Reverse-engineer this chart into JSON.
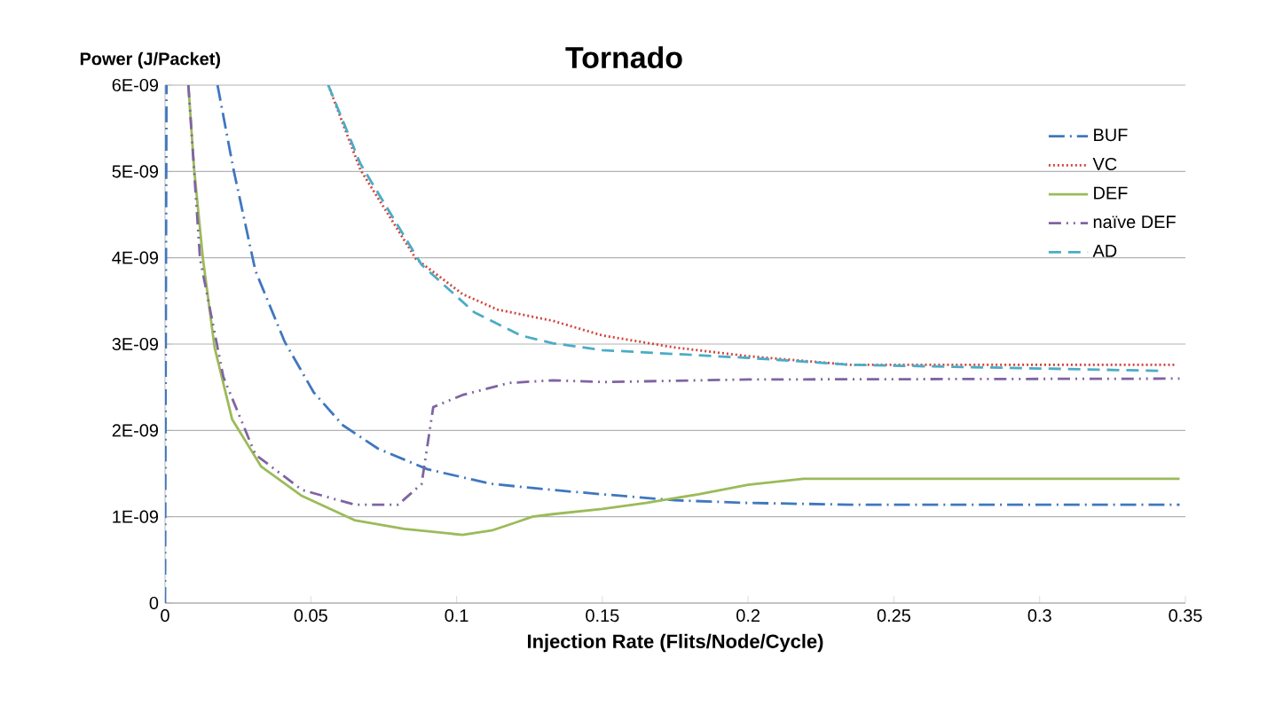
{
  "chart_data": {
    "type": "line",
    "title": "Tornado",
    "xlabel": "Injection Rate (Flits/Node/Cycle)",
    "ylabel": "Power (J/Packet)",
    "xlim": [
      0,
      0.35
    ],
    "xticks": [
      0,
      0.05,
      0.1,
      0.15,
      0.2,
      0.25,
      0.3,
      0.35
    ],
    "ylim": [
      0,
      6e-09
    ],
    "yticks": [
      {
        "value": 0,
        "label": "0"
      },
      {
        "value": 1e-09,
        "label": "1E-09"
      },
      {
        "value": 2e-09,
        "label": "2E-09"
      },
      {
        "value": 3e-09,
        "label": "3E-09"
      },
      {
        "value": 4e-09,
        "label": "4E-09"
      },
      {
        "value": 5e-09,
        "label": "5E-09"
      },
      {
        "value": 6e-09,
        "label": "6E-09"
      }
    ],
    "grid": "y",
    "legend": "top right",
    "series": [
      {
        "name": "BUF",
        "color": "#3f77c0",
        "line_style": "dashdot",
        "x": [
          0,
          0.0005,
          0.01,
          0.018,
          0.0235,
          0.031,
          0.041,
          0.051,
          0.061,
          0.073,
          0.09,
          0.112,
          0.133,
          0.15,
          0.175,
          0.2,
          0.235,
          0.348
        ],
        "values": [
          0,
          6e-09,
          null,
          6e-09,
          5.02e-09,
          3.85e-09,
          3.03e-09,
          2.44e-09,
          2.06e-09,
          1.79e-09,
          1.55e-09,
          1.38e-09,
          1.31e-09,
          1.26e-09,
          1.19e-09,
          1.16e-09,
          1.14e-09,
          1.14e-09
        ]
      },
      {
        "name": "VC",
        "color": "#d0453f",
        "line_style": "dotted",
        "x": [
          0.056,
          0.067,
          0.086,
          0.102,
          0.114,
          0.133,
          0.15,
          0.175,
          0.2,
          0.235,
          0.347
        ],
        "values": [
          6e-09,
          5.02e-09,
          3.99e-09,
          3.58e-09,
          3.4e-09,
          3.27e-09,
          3.1e-09,
          2.96e-09,
          2.86e-09,
          2.76e-09,
          2.76e-09
        ]
      },
      {
        "name": "DEF",
        "color": "#9bbb59",
        "line_style": "solid",
        "x": [
          0.008,
          0.01,
          0.013,
          0.017,
          0.023,
          0.033,
          0.047,
          0.065,
          0.082,
          0.102,
          0.112,
          0.12,
          0.126,
          0.133,
          0.15,
          0.165,
          0.183,
          0.2,
          0.219,
          0.27,
          0.348
        ],
        "values": [
          6e-09,
          5.02e-09,
          3.99e-09,
          2.96e-09,
          2.13e-09,
          1.58e-09,
          1.24e-09,
          9.6e-10,
          8.6e-10,
          7.9e-10,
          8.4e-10,
          9.3e-10,
          1e-09,
          1.03e-09,
          1.09e-09,
          1.16e-09,
          1.26e-09,
          1.37e-09,
          1.44e-09,
          1.44e-09,
          1.44e-09
        ]
      },
      {
        "name": "naïve DEF",
        "color": "#8064a2",
        "line_style": "dashdotdot",
        "x": [
          0.008,
          0.012,
          0.02,
          0.031,
          0.047,
          0.065,
          0.08,
          0.088,
          0.092,
          0.102,
          0.118,
          0.133,
          0.15,
          0.2,
          0.348
        ],
        "values": [
          6e-09,
          3.99e-09,
          2.62e-09,
          1.72e-09,
          1.31e-09,
          1.14e-09,
          1.14e-09,
          1.38e-09,
          2.27e-09,
          2.41e-09,
          2.55e-09,
          2.58e-09,
          2.56e-09,
          2.59e-09,
          2.6e-09
        ]
      },
      {
        "name": "AD",
        "color": "#4bacc6",
        "line_style": "dashed",
        "x": [
          0.056,
          0.067,
          0.088,
          0.106,
          0.122,
          0.133,
          0.15,
          0.2,
          0.235,
          0.296,
          0.341
        ],
        "values": [
          6e-09,
          5.09e-09,
          3.92e-09,
          3.37e-09,
          3.1e-09,
          3.01e-09,
          2.93e-09,
          2.84e-09,
          2.76e-09,
          2.72e-09,
          2.69e-09
        ]
      }
    ]
  }
}
